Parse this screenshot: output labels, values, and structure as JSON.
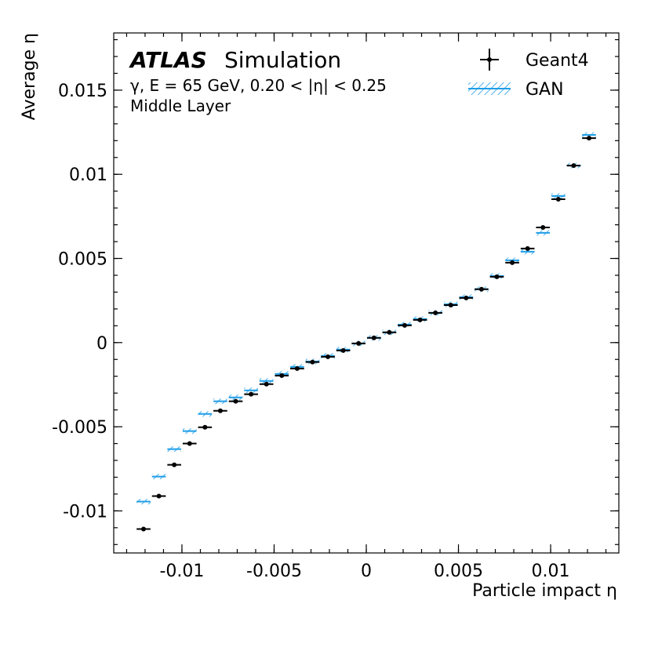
{
  "chart_data": {
    "type": "binned-points",
    "experiment": "ATLAS",
    "label": "Simulation",
    "subtitle": [
      "γ, E = 65 GeV, 0.20 < |η| < 0.25",
      "Middle Layer"
    ],
    "xlabel": "Particle impact η",
    "ylabel": "Average η",
    "x": [
      -0.012083,
      -0.01125,
      -0.010417,
      -0.009583,
      -0.00875,
      -0.007917,
      -0.007083,
      -0.00625,
      -0.005417,
      -0.004583,
      -0.00375,
      -0.002917,
      -0.002083,
      -0.00125,
      -0.000417,
      0.000417,
      0.00125,
      0.002083,
      0.002917,
      0.00375,
      0.004583,
      0.005417,
      0.00625,
      0.007083,
      0.007917,
      0.00875,
      0.009583,
      0.010417,
      0.01125,
      0.012083
    ],
    "series": [
      {
        "name": "Geant4",
        "color": "#000000",
        "style": "points",
        "values": [
          -0.01108,
          -0.00912,
          -0.00726,
          -0.006,
          -0.00503,
          -0.00405,
          -0.00349,
          -0.00307,
          -0.00247,
          -0.00196,
          -0.00154,
          -0.00116,
          -0.00084,
          -0.00047,
          -5e-05,
          0.00028,
          0.00061,
          0.00102,
          0.00135,
          0.00177,
          0.00223,
          0.00265,
          0.00317,
          0.00391,
          0.00475,
          0.00559,
          0.00684,
          0.00852,
          0.01052,
          0.01215
        ]
      },
      {
        "name": "GAN",
        "color": "#1f9ee8",
        "style": "hatched",
        "values": [
          -0.00945,
          -0.00796,
          -0.00633,
          -0.00526,
          -0.00424,
          -0.00349,
          -0.00326,
          -0.00284,
          -0.00228,
          -0.00186,
          -0.00144,
          -0.00112,
          -0.00079,
          -0.00042,
          -5e-05,
          0.00028,
          0.00061,
          0.00107,
          0.0014,
          0.00177,
          0.00228,
          0.0027,
          0.00317,
          0.00396,
          0.00489,
          0.0054,
          0.00652,
          0.00871,
          0.01052,
          0.01234
        ]
      }
    ],
    "xlim": [
      -0.0137,
      0.0137
    ],
    "xticks": [
      -0.01,
      -0.005,
      0,
      0.005,
      0.01
    ],
    "ylim": [
      -0.0125,
      0.0184
    ],
    "yticks": [
      -0.01,
      -0.005,
      0,
      0.005,
      0.01,
      0.015
    ],
    "legend": "upper right",
    "grid": false
  }
}
